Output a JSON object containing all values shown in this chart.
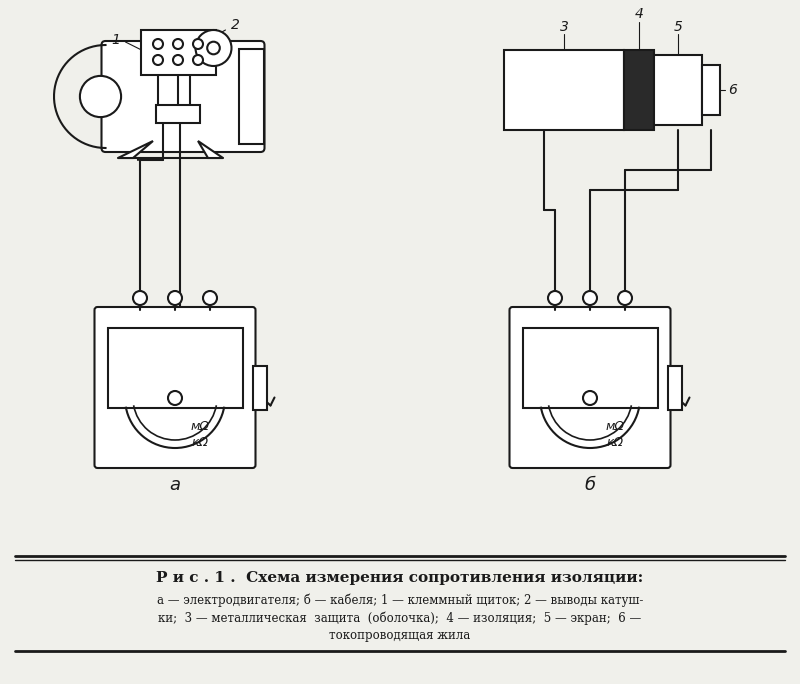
{
  "bg_color": "#f0f0eb",
  "line_color": "#1a1a1a",
  "title_line1": "Р и с . 1 .  Схема измерения сопротивления изоляции:",
  "caption_line2": "а — электродвигателя; б — кабеля; 1 — клеммный щиток; 2 — выводы катуш-",
  "caption_line3": "ки;  3 — металлическая  защита  (оболочка);  4 — изоляция;  5 — экран;  6 —",
  "caption_line4": "токопроводящая жила",
  "label_a": "а",
  "label_b": "б",
  "label_1": "1",
  "label_2": "2",
  "label_3": "3",
  "label_4": "4",
  "label_5": "5",
  "label_6": "6",
  "mOhm_text": "мΩ",
  "kOhm_text": "кΩ"
}
